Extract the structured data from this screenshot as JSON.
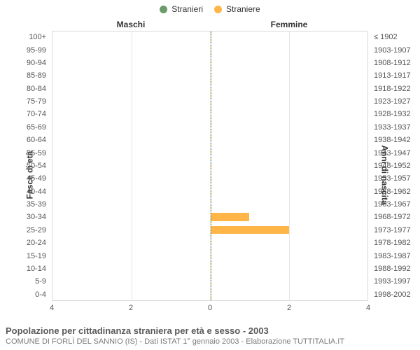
{
  "legend": {
    "items": [
      {
        "label": "Stranieri",
        "color": "#6b9a6b"
      },
      {
        "label": "Straniere",
        "color": "#ffb547"
      }
    ]
  },
  "panels": {
    "left": "Maschi",
    "right": "Femmine"
  },
  "axes": {
    "y_left_title": "Fasce di età",
    "y_right_title": "Anni di nascita",
    "x_max": 4,
    "x_ticks_left": [
      4,
      2,
      0
    ],
    "x_ticks_right": [
      0,
      2,
      4
    ]
  },
  "styling": {
    "plot_bg": "#ffffff",
    "grid_color": "#e6e6e6",
    "border_color": "#d9d9d9",
    "font_family": "Arial, Helvetica, sans-serif",
    "tick_fontsize": 11,
    "panel_title_fontsize": 12,
    "bar_left_color": "#6b9a6b",
    "bar_right_color": "#ffb547",
    "center_line_color_a": "#ffc04c",
    "center_line_color_b": "#5b8a5b"
  },
  "rows": [
    {
      "age": "100+",
      "years": "≤ 1902",
      "m": 0,
      "f": 0
    },
    {
      "age": "95-99",
      "years": "1903-1907",
      "m": 0,
      "f": 0
    },
    {
      "age": "90-94",
      "years": "1908-1912",
      "m": 0,
      "f": 0
    },
    {
      "age": "85-89",
      "years": "1913-1917",
      "m": 0,
      "f": 0
    },
    {
      "age": "80-84",
      "years": "1918-1922",
      "m": 0,
      "f": 0
    },
    {
      "age": "75-79",
      "years": "1923-1927",
      "m": 0,
      "f": 0
    },
    {
      "age": "70-74",
      "years": "1928-1932",
      "m": 0,
      "f": 0
    },
    {
      "age": "65-69",
      "years": "1933-1937",
      "m": 0,
      "f": 0
    },
    {
      "age": "60-64",
      "years": "1938-1942",
      "m": 0,
      "f": 0
    },
    {
      "age": "55-59",
      "years": "1943-1947",
      "m": 0,
      "f": 0
    },
    {
      "age": "50-54",
      "years": "1948-1952",
      "m": 0,
      "f": 0
    },
    {
      "age": "45-49",
      "years": "1953-1957",
      "m": 0,
      "f": 0
    },
    {
      "age": "40-44",
      "years": "1958-1962",
      "m": 0,
      "f": 0
    },
    {
      "age": "35-39",
      "years": "1963-1967",
      "m": 0,
      "f": 0
    },
    {
      "age": "30-34",
      "years": "1968-1972",
      "m": 0,
      "f": 1
    },
    {
      "age": "25-29",
      "years": "1973-1977",
      "m": 0,
      "f": 2
    },
    {
      "age": "20-24",
      "years": "1978-1982",
      "m": 0,
      "f": 0
    },
    {
      "age": "15-19",
      "years": "1983-1987",
      "m": 0,
      "f": 0
    },
    {
      "age": "10-14",
      "years": "1988-1992",
      "m": 0,
      "f": 0
    },
    {
      "age": "5-9",
      "years": "1993-1997",
      "m": 0,
      "f": 0
    },
    {
      "age": "0-4",
      "years": "1998-2002",
      "m": 0,
      "f": 0
    }
  ],
  "caption": {
    "title": "Popolazione per cittadinanza straniera per età e sesso - 2003",
    "subtitle": "COMUNE DI FORLÌ DEL SANNIO (IS) - Dati ISTAT 1° gennaio 2003 - Elaborazione TUTTITALIA.IT"
  }
}
